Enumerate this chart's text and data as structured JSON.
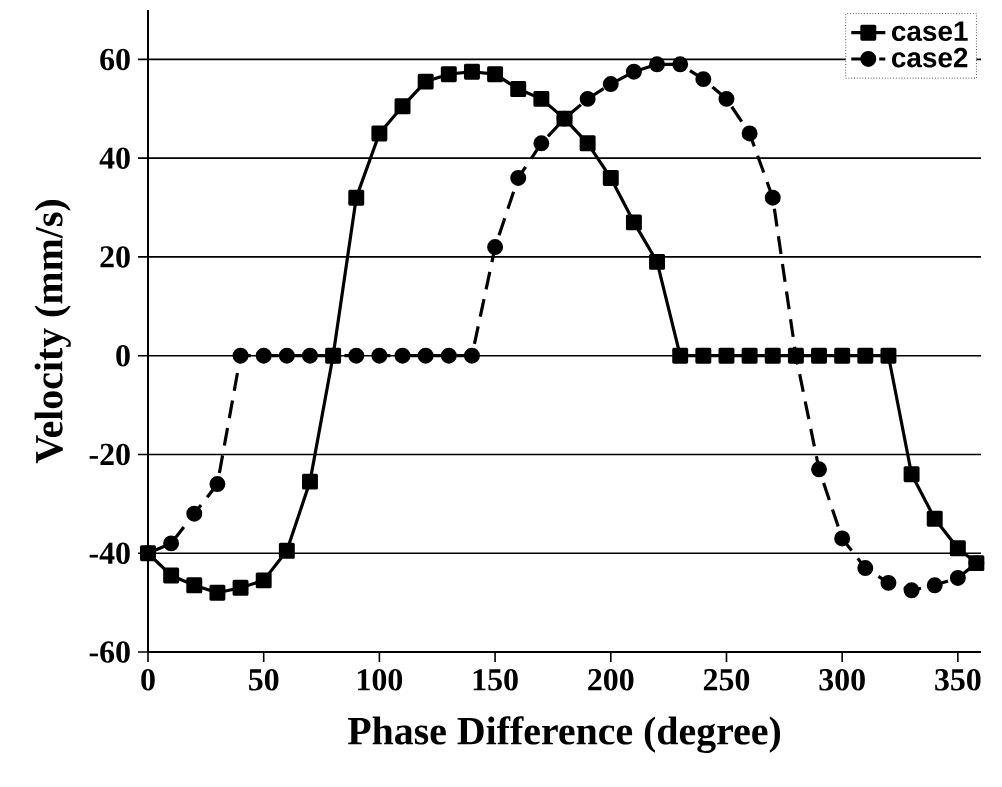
{
  "chart_data": {
    "type": "line",
    "xlabel": "Phase Difference (degree)",
    "ylabel": "Velocity (mm/s)",
    "xlim": [
      0,
      360
    ],
    "ylim": [
      -60,
      70
    ],
    "xticks": [
      0,
      50,
      100,
      150,
      200,
      250,
      300,
      350
    ],
    "yticks": [
      -60,
      -40,
      -20,
      0,
      20,
      40,
      60
    ],
    "grid": "y",
    "legend": "top right",
    "series": [
      {
        "name": "case1",
        "color": "#000000",
        "marker": "square",
        "line_style": "solid",
        "x": [
          0,
          10,
          20,
          30,
          40,
          50,
          60,
          70,
          80,
          90,
          100,
          110,
          120,
          130,
          140,
          150,
          160,
          170,
          180,
          190,
          200,
          210,
          220,
          230,
          240,
          250,
          260,
          270,
          280,
          290,
          300,
          310,
          320,
          330,
          340,
          350,
          358
        ],
        "values": [
          -40,
          -44.5,
          -46.5,
          -48,
          -47,
          -45.5,
          -39.5,
          -25.5,
          0,
          32,
          45,
          50.5,
          55.5,
          57,
          57.5,
          57,
          54,
          52,
          48,
          43,
          36,
          27,
          19,
          0,
          0,
          0,
          0,
          0,
          0,
          0,
          0,
          0,
          0,
          -24,
          -33,
          -39,
          -42
        ]
      },
      {
        "name": "case2",
        "color": "#000000",
        "marker": "circle",
        "line_style": "dashed",
        "x": [
          0,
          10,
          20,
          30,
          40,
          50,
          60,
          70,
          80,
          90,
          100,
          110,
          120,
          130,
          140,
          150,
          160,
          170,
          180,
          190,
          200,
          210,
          220,
          230,
          240,
          250,
          260,
          270,
          280,
          290,
          300,
          310,
          320,
          330,
          340,
          350,
          358
        ],
        "values": [
          -40,
          -38,
          -32,
          -26,
          0,
          0,
          0,
          0,
          0,
          0,
          0,
          0,
          0,
          0,
          0,
          22,
          36,
          43,
          48,
          52,
          55,
          57.5,
          59,
          59,
          56,
          52,
          45,
          32,
          0,
          -23,
          -37,
          -43,
          -46,
          -47.5,
          -46.5,
          -45,
          -42
        ]
      }
    ]
  }
}
